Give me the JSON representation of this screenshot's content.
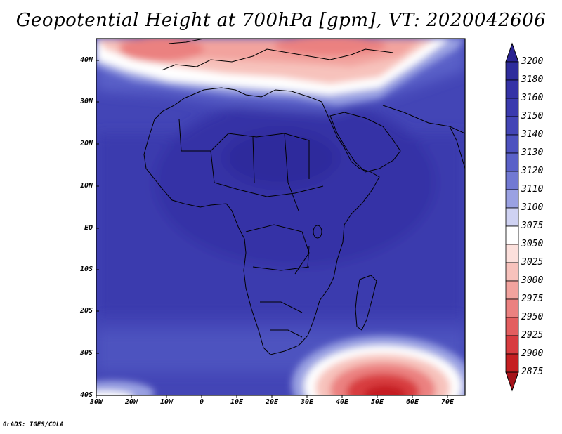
{
  "title": "Geopotential Height at 700hPa [gpm], VT: 2020042606",
  "footer": "GrADS: IGES/COLA",
  "map": {
    "y_axis_labels": [
      "40N",
      "30N",
      "20N",
      "10N",
      "EQ",
      "10S",
      "20S",
      "30S",
      "40S"
    ],
    "x_axis_labels": [
      "30W",
      "20W",
      "10W",
      "0",
      "10E",
      "20E",
      "30E",
      "40E",
      "50E",
      "60E",
      "70E"
    ],
    "lon_range": [
      -30,
      75
    ],
    "lat_range": [
      -40,
      45
    ]
  },
  "colorbar": {
    "levels": [
      "3200",
      "3180",
      "3160",
      "3150",
      "3140",
      "3130",
      "3120",
      "3110",
      "3100",
      "3075",
      "3050",
      "3025",
      "3000",
      "2975",
      "2950",
      "2925",
      "2900",
      "2875"
    ],
    "colors": [
      "#2a2391",
      "#2e2c9c",
      "#3432a6",
      "#3a3aae",
      "#4345b6",
      "#4d52bf",
      "#5a61c8",
      "#7179d3",
      "#9aa1e2",
      "#cfd2f2",
      "#ffffff",
      "#fce0dc",
      "#f7c2bc",
      "#f2a39e",
      "#eb8180",
      "#e35e5f",
      "#d83c40",
      "#c51f22",
      "#a5131a"
    ]
  }
}
